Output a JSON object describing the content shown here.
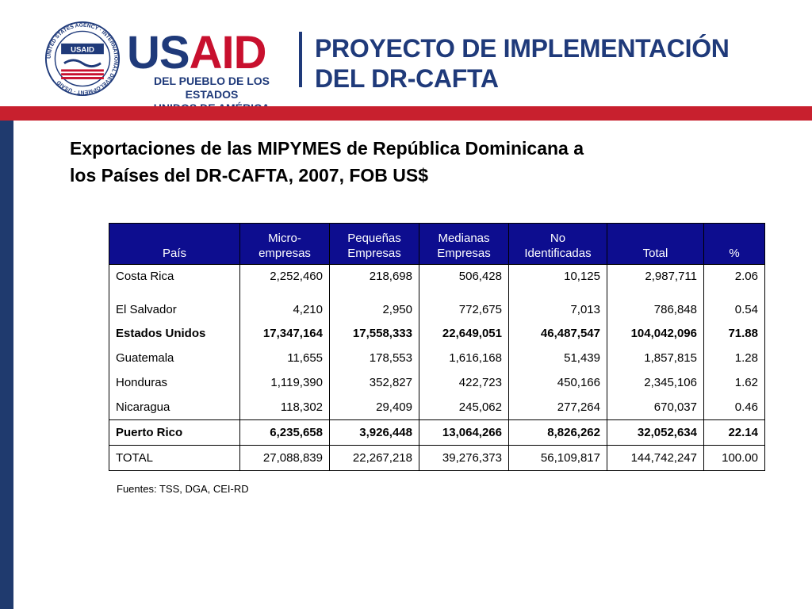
{
  "header": {
    "usaid_us": "US",
    "usaid_aid": "AID",
    "usaid_line1": "DEL PUEBLO DE LOS ESTADOS",
    "usaid_line2": "UNIDOS DE AMÉRICA",
    "project_line1": "PROYECTO DE IMPLEMENTACIÓN",
    "project_line2": "DEL DR-CAFTA",
    "seal_text": "UNITED STATES AGENCY · INTERNATIONAL DEVELOPMENT · USAID",
    "seal_label": "USAID"
  },
  "colors": {
    "navy": "#1f3a7a",
    "red": "#c8102e",
    "table_header": "#0d0d8f",
    "red_bar": "#c8202e",
    "blue_bar": "#1f3a6e"
  },
  "title_line1": "Exportaciones de las MIPYMES de República Dominicana a",
  "title_line2": "los Países del DR-CAFTA, 2007, FOB US$",
  "table": {
    "headers": [
      [
        "País"
      ],
      [
        "Micro-",
        "empresas"
      ],
      [
        "Pequeñas",
        "Empresas"
      ],
      [
        "Medianas",
        "Empresas"
      ],
      [
        "No",
        "Identificadas"
      ],
      [
        "Total"
      ],
      [
        "%"
      ]
    ],
    "rows": [
      [
        "Costa Rica",
        "2,252,460",
        "218,698",
        "506,428",
        "10,125",
        "2,987,711",
        "2.06"
      ],
      [
        "El Salvador",
        "4,210",
        "2,950",
        "772,675",
        "7,013",
        "786,848",
        "0.54"
      ],
      [
        "Estados Unidos",
        "17,347,164",
        "17,558,333",
        "22,649,051",
        "46,487,547",
        "104,042,096",
        "71.88"
      ],
      [
        "Guatemala",
        "11,655",
        "178,553",
        "1,616,168",
        "51,439",
        "1,857,815",
        "1.28"
      ],
      [
        "Honduras",
        "1,119,390",
        "352,827",
        "422,723",
        "450,166",
        "2,345,106",
        "1.62"
      ],
      [
        "Nicaragua",
        "118,302",
        "29,409",
        "245,062",
        "277,264",
        "670,037",
        "0.46"
      ],
      [
        "Puerto Rico",
        "6,235,658",
        "3,926,448",
        "13,064,266",
        "8,826,262",
        "32,052,634",
        "22.14"
      ],
      [
        "TOTAL",
        "27,088,839",
        "22,267,218",
        "39,276,373",
        "56,109,817",
        "144,742,247",
        "100.00"
      ]
    ],
    "bold_rows": [
      2,
      6
    ]
  },
  "sources": "Fuentes: TSS, DGA, CEI-RD"
}
